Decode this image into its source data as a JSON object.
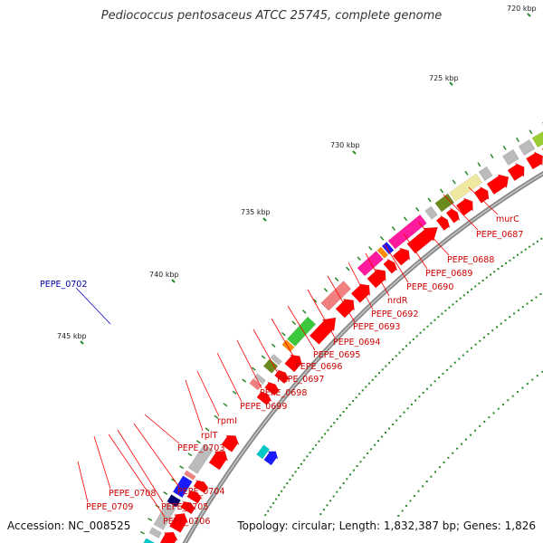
{
  "title": "Pediococcus pentosaceus ATCC 25745, complete genome",
  "accession_label": "Accession: NC_008525",
  "summary": "Topology: circular; Length: 1,832,387 bp; Genes: 1,826",
  "colors": {
    "backbone": "#888888",
    "cds": "#ff0000",
    "pink": "#ff1a9e",
    "salmon": "#f08080",
    "green": "#3cc83c",
    "olive": "#6a8a1e",
    "khaki": "#eee8a0",
    "blue": "#1a1aff",
    "navy": "#00006e",
    "cyan": "#00c8c8",
    "orange": "#ff8c00",
    "grey": "#bbbbbb",
    "leader": "#ff0000",
    "highlight_leader": "#0000cc",
    "tick": "#2a8a2a"
  },
  "scale_labels": [
    "720 kbp",
    "725 kbp",
    "730 kbp",
    "735 kbp",
    "740 kbp",
    "745 kbp"
  ],
  "gene_labels": [
    "murC",
    "PEPE_0687",
    "PEPE_0688",
    "PEPE_0689",
    "PEPE_0690",
    "nrdR",
    "PEPE_0692",
    "PEPE_0693",
    "PEPE_0694",
    "PEPE_0695",
    "PEPE_0696",
    "PEPE_0697",
    "PEPE_0698",
    "PEPE_0699",
    "rpmI",
    "rplT",
    "PEPE_0703",
    "PEPE_0704",
    "PEPE_0705",
    "PEPE_0706",
    "PEPE_0708",
    "PEPE_0709"
  ],
  "highlight_label": "PEPE_0702"
}
